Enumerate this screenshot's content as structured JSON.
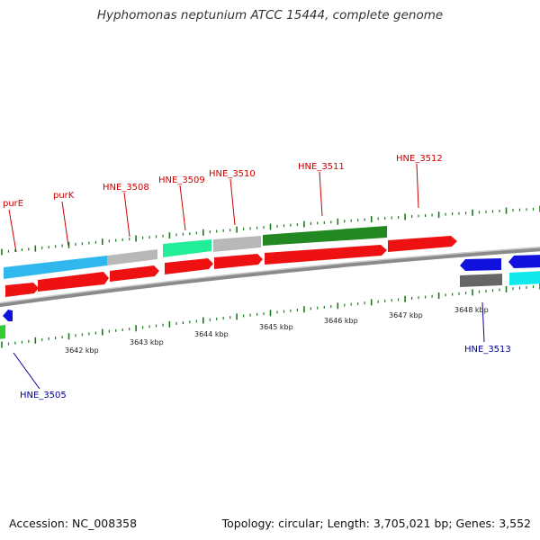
{
  "title": "Hyphomonas neptunium ATCC 15444, complete genome",
  "footer": {
    "accession": "Accession: NC_008358",
    "topology": "Topology: circular; Length: 3,705,021 bp; Genes: 3,552"
  },
  "colors": {
    "forward_label": "#cc0000",
    "reverse_label": "#000099",
    "tick": "#1a7a1a",
    "backbone": "#808080",
    "cds": "#ee1111",
    "cds_reverse": "#1111dd",
    "sky": "#30b8ee",
    "silver": "#b8b8b8",
    "mint": "#22ee99",
    "forest": "#228822",
    "charcoal": "#666666",
    "cyan": "#11e8ee",
    "lime": "#33cc33"
  },
  "forward_labels": [
    "purE",
    "purK",
    "HNE_3508",
    "HNE_3509",
    "HNE_3510",
    "HNE_3511",
    "HNE_3512"
  ],
  "reverse_labels": [
    "HNE_3505",
    "HNE_3513"
  ],
  "kbp_labels": [
    "3642 kbp",
    "3643 kbp",
    "3644 kbp",
    "3645 kbp",
    "3646 kbp",
    "3647 kbp",
    "3648 kbp"
  ]
}
